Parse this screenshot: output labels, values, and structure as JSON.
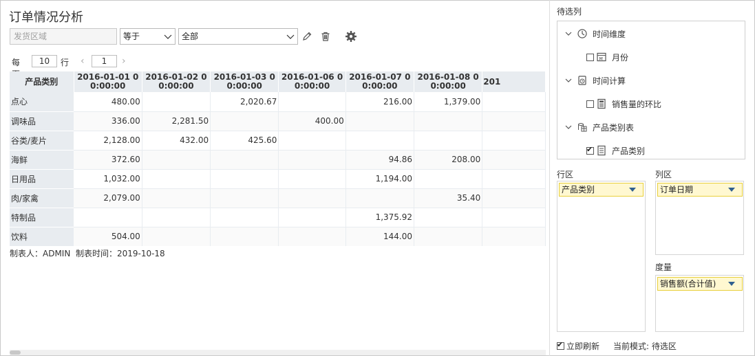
{
  "report": {
    "title": "订单情况分析",
    "filter": {
      "field_placeholder": "发货区域",
      "operator": "等于",
      "value": "全部"
    },
    "pager": {
      "per_page_label": "每页",
      "per_page_value": "10",
      "row_label": "行",
      "page_value": "1",
      "prev_symbol": "‹",
      "next_symbol": "›"
    },
    "table": {
      "row_header": "产品类别",
      "columns": [
        "2016-01-01 00:00:00",
        "2016-01-02 00:00:00",
        "2016-01-03 00:00:00",
        "2016-01-06 00:00:00",
        "2016-01-07 00:00:00",
        "2016-01-08 00:00:00",
        "201"
      ],
      "rows": [
        {
          "label": "点心",
          "cells": [
            "480.00",
            "",
            "2,020.67",
            "",
            "216.00",
            "1,379.00",
            ""
          ]
        },
        {
          "label": "调味品",
          "cells": [
            "336.00",
            "2,281.50",
            "",
            "400.00",
            "",
            "",
            ""
          ]
        },
        {
          "label": "谷类/麦片",
          "cells": [
            "2,128.00",
            "432.00",
            "425.60",
            "",
            "",
            "",
            ""
          ]
        },
        {
          "label": "海鲜",
          "cells": [
            "372.60",
            "",
            "",
            "",
            "94.86",
            "208.00",
            ""
          ]
        },
        {
          "label": "日用品",
          "cells": [
            "1,032.00",
            "",
            "",
            "",
            "1,194.00",
            "",
            ""
          ]
        },
        {
          "label": "肉/家禽",
          "cells": [
            "2,079.00",
            "",
            "",
            "",
            "",
            "35.40",
            ""
          ]
        },
        {
          "label": "特制品",
          "cells": [
            "",
            "",
            "",
            "",
            "1,375.92",
            "",
            ""
          ]
        },
        {
          "label": "饮料",
          "cells": [
            "504.00",
            "",
            "",
            "",
            "144.00",
            "",
            ""
          ]
        }
      ]
    },
    "footer": "制表人：ADMIN  制表时间：2019-10-18"
  },
  "panel": {
    "candidates_label": "待选列",
    "tree": {
      "time_dim": "时间维度",
      "month": "月份",
      "time_calc": "时间计算",
      "ring_ratio": "销售量的环比",
      "category_table": "产品类别表",
      "category": "产品类别"
    },
    "row_zone_label": "行区",
    "row_zone_chip": "产品类别",
    "col_zone_label": "列区",
    "col_zone_chip": "订单日期",
    "measure_label": "度量",
    "measure_chip": "销售额(合计值)",
    "refresh_label": "立即刷新",
    "mode_label": "当前模式: 待选区"
  }
}
